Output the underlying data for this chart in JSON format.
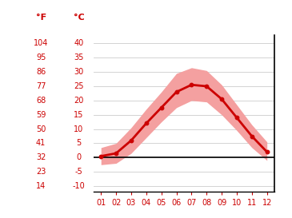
{
  "months": [
    1,
    2,
    3,
    4,
    5,
    6,
    7,
    8,
    9,
    10,
    11,
    12
  ],
  "month_labels": [
    "01",
    "02",
    "03",
    "04",
    "05",
    "06",
    "07",
    "08",
    "09",
    "10",
    "11",
    "12"
  ],
  "mean_temp_c": [
    0.5,
    1.5,
    6.0,
    12.0,
    17.5,
    23.0,
    25.5,
    25.0,
    20.5,
    14.0,
    7.5,
    2.0
  ],
  "max_temp_c": [
    3.5,
    5.0,
    10.5,
    17.0,
    23.0,
    29.5,
    31.5,
    30.5,
    25.5,
    18.5,
    11.5,
    5.5
  ],
  "min_temp_c": [
    -2.5,
    -2.0,
    1.5,
    7.0,
    12.5,
    17.5,
    20.0,
    19.5,
    15.0,
    9.5,
    3.5,
    -1.0
  ],
  "line_color": "#cc0000",
  "band_color": "#f4a0a0",
  "zero_line_color": "#000000",
  "label_F": "°F",
  "label_C": "°C",
  "yticks_c": [
    -10,
    -5,
    0,
    5,
    10,
    15,
    20,
    25,
    30,
    35,
    40
  ],
  "yticks_f": [
    14,
    23,
    32,
    41,
    50,
    59,
    68,
    77,
    86,
    95,
    104
  ],
  "ylim_c": [
    -12,
    43
  ],
  "xlim": [
    0.5,
    12.5
  ],
  "background_color": "#ffffff",
  "grid_color": "#cccccc",
  "tick_color": "#cc0000",
  "label_color": "#cc0000",
  "figsize": [
    3.65,
    2.73
  ],
  "dpi": 100
}
